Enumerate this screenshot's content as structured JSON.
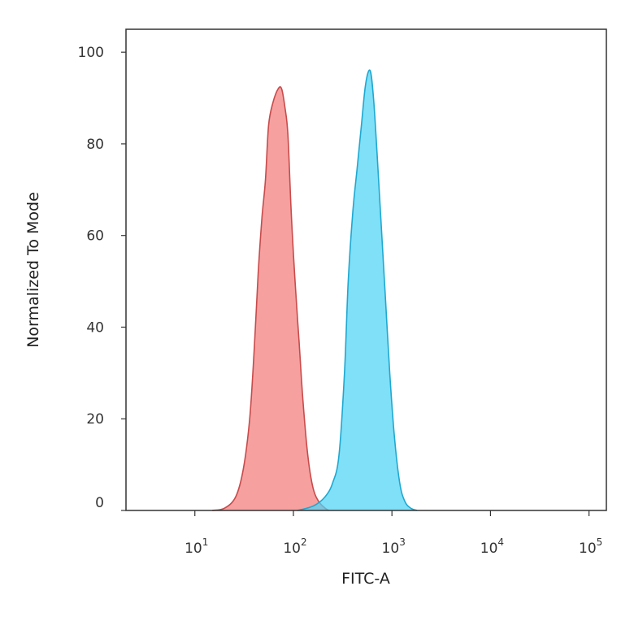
{
  "chart_data": {
    "type": "area",
    "title": "",
    "xlabel": "FITC-A",
    "ylabel": "Normalized To Mode",
    "x_scale": "log",
    "xlim": [
      2,
      150000
    ],
    "ylim": [
      0,
      105
    ],
    "x_ticks": [
      {
        "value": 10,
        "base": "10",
        "exp": "1"
      },
      {
        "value": 100,
        "base": "10",
        "exp": "2"
      },
      {
        "value": 1000,
        "base": "10",
        "exp": "3"
      },
      {
        "value": 10000,
        "base": "10",
        "exp": "4"
      },
      {
        "value": 100000,
        "base": "10",
        "exp": "5"
      }
    ],
    "y_ticks": [
      0,
      20,
      40,
      60,
      80,
      100
    ],
    "grid": false,
    "legend": "none",
    "series": [
      {
        "color": "#f47c7c",
        "stroke": "#c84b4b",
        "points": [
          [
            15,
            0
          ],
          [
            20,
            0.5
          ],
          [
            26,
            3
          ],
          [
            31,
            9
          ],
          [
            36,
            20
          ],
          [
            40,
            35
          ],
          [
            44,
            52
          ],
          [
            48,
            64
          ],
          [
            52,
            72
          ],
          [
            56,
            84
          ],
          [
            62,
            89
          ],
          [
            70,
            92
          ],
          [
            76,
            92
          ],
          [
            82,
            88
          ],
          [
            88,
            82
          ],
          [
            95,
            65
          ],
          [
            104,
            50
          ],
          [
            114,
            37
          ],
          [
            125,
            24
          ],
          [
            140,
            12
          ],
          [
            158,
            5
          ],
          [
            180,
            2
          ],
          [
            210,
            0.5
          ],
          [
            230,
            0
          ]
        ]
      },
      {
        "color": "#4dd4f5",
        "stroke": "#1fa8d0",
        "points": [
          [
            110,
            0
          ],
          [
            160,
            1
          ],
          [
            210,
            3
          ],
          [
            250,
            6
          ],
          [
            290,
            12
          ],
          [
            330,
            30
          ],
          [
            360,
            50
          ],
          [
            400,
            65
          ],
          [
            440,
            74
          ],
          [
            490,
            84
          ],
          [
            540,
            93
          ],
          [
            600,
            96
          ],
          [
            650,
            90
          ],
          [
            710,
            77
          ],
          [
            780,
            62
          ],
          [
            860,
            46
          ],
          [
            950,
            30
          ],
          [
            1060,
            16
          ],
          [
            1200,
            6
          ],
          [
            1350,
            2
          ],
          [
            1550,
            0.5
          ],
          [
            1800,
            0
          ]
        ]
      }
    ]
  }
}
